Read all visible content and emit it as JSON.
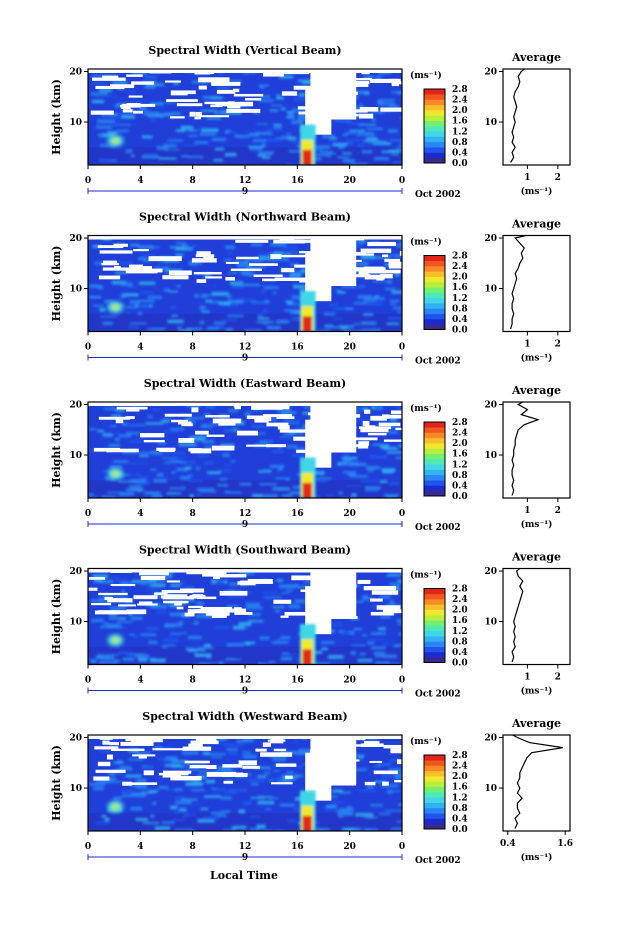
{
  "colors": {
    "colorbar": [
      "#3a2a8c",
      "#1b2bd0",
      "#1f55ee",
      "#2a86f4",
      "#31b2f2",
      "#41d6e6",
      "#4fe8b8",
      "#74f070",
      "#b9ef3c",
      "#efe92d",
      "#f9be2a",
      "#f98a26",
      "#f2571f",
      "#e2251b"
    ],
    "background_fill": "#1f3fd8",
    "line": "#000000"
  },
  "shared": {
    "xlabel": "Local Time",
    "date_label": "Oct 2002",
    "date_marker": "9",
    "height_label": "Height (km)",
    "unit_label": "(ms⁻¹)",
    "average_title": "Average",
    "average_xlabel": "(ms⁻¹)"
  },
  "chart_data": [
    {
      "type": "heatmap",
      "title": "Spectral Width (Vertical Beam)",
      "ylabel": "Height (km)",
      "xticks": [
        "0",
        "4",
        "8",
        "12",
        "16",
        "20",
        "0"
      ],
      "yticks": [
        "10",
        "20"
      ],
      "xlim": [
        0,
        24
      ],
      "ylim": [
        1.5,
        20.5
      ],
      "colorbar": {
        "label": "(ms⁻¹)",
        "ticks": [
          "2.8",
          "2.4",
          "2.0",
          "1.6",
          "1.2",
          "0.8",
          "0.4",
          "0.0"
        ],
        "range": [
          0,
          2.8
        ]
      },
      "average_profile": {
        "title": "Average",
        "xlabel": "(ms⁻¹)",
        "xticks": [
          "1",
          "2"
        ],
        "yticks": [
          "10",
          "20"
        ],
        "xlim": [
          0.2,
          2.4
        ],
        "x": [
          0.45,
          0.55,
          0.5,
          0.6,
          0.5,
          0.55,
          0.5,
          0.55,
          0.6,
          0.55,
          0.6,
          0.65,
          0.6,
          0.55,
          0.6,
          0.7,
          0.75,
          0.7,
          0.8,
          0.9
        ],
        "y": [
          2,
          3,
          4,
          5,
          6,
          7,
          8,
          9,
          10,
          11,
          12,
          13,
          14,
          15,
          16,
          17,
          18,
          19,
          20,
          20.5
        ]
      }
    },
    {
      "type": "heatmap",
      "title": "Spectral Width (Northward Beam)",
      "ylabel": "Height (km)",
      "xticks": [
        "0",
        "4",
        "8",
        "12",
        "16",
        "20",
        "0"
      ],
      "yticks": [
        "10",
        "20"
      ],
      "xlim": [
        0,
        24
      ],
      "ylim": [
        1.5,
        20.5
      ],
      "colorbar": {
        "label": "(ms⁻¹)",
        "ticks": [
          "2.8",
          "2.4",
          "2.0",
          "1.6",
          "1.2",
          "0.8",
          "0.4",
          "0.0"
        ],
        "range": [
          0,
          2.8
        ]
      },
      "average_profile": {
        "title": "Average",
        "xlabel": "(ms⁻¹)",
        "xticks": [
          "1",
          "2"
        ],
        "yticks": [
          "10",
          "20"
        ],
        "xlim": [
          0.2,
          2.4
        ],
        "x": [
          0.45,
          0.5,
          0.5,
          0.55,
          0.5,
          0.5,
          0.55,
          0.5,
          0.55,
          0.6,
          0.65,
          0.6,
          0.7,
          0.75,
          0.85,
          0.8,
          0.9,
          0.75,
          0.6,
          0.95
        ],
        "y": [
          2,
          3,
          4,
          5,
          6,
          7,
          8,
          9,
          10,
          11,
          12,
          13,
          14,
          15,
          16,
          17,
          18,
          19,
          20,
          20.5
        ]
      }
    },
    {
      "type": "heatmap",
      "title": "Spectral Width (Eastward Beam)",
      "ylabel": "Height (km)",
      "xticks": [
        "0",
        "4",
        "8",
        "12",
        "16",
        "20",
        "0"
      ],
      "yticks": [
        "10",
        "20"
      ],
      "xlim": [
        0,
        24
      ],
      "ylim": [
        1.5,
        20.5
      ],
      "colorbar": {
        "label": "(ms⁻¹)",
        "ticks": [
          "2.8",
          "2.4",
          "2.0",
          "1.6",
          "1.2",
          "0.8",
          "0.4",
          "0.0"
        ],
        "range": [
          0,
          2.8
        ]
      },
      "average_profile": {
        "title": "Average",
        "xlabel": "(ms⁻¹)",
        "xticks": [
          "1",
          "2"
        ],
        "yticks": [
          "10",
          "20"
        ],
        "xlim": [
          0.2,
          2.4
        ],
        "x": [
          0.5,
          0.55,
          0.5,
          0.55,
          0.5,
          0.5,
          0.55,
          0.5,
          0.55,
          0.55,
          0.6,
          0.6,
          0.65,
          0.7,
          0.9,
          1.35,
          0.8,
          1.0,
          0.7,
          0.85
        ],
        "y": [
          2,
          3,
          4,
          5,
          6,
          7,
          8,
          9,
          10,
          11,
          12,
          13,
          14,
          15,
          16,
          17,
          18,
          19,
          20,
          20.5
        ]
      }
    },
    {
      "type": "heatmap",
      "title": "Spectral Width (Southward Beam)",
      "ylabel": "Height (km)",
      "xticks": [
        "0",
        "4",
        "8",
        "12",
        "16",
        "20",
        "0"
      ],
      "yticks": [
        "10",
        "20"
      ],
      "xlim": [
        0,
        24
      ],
      "ylim": [
        1.5,
        20.5
      ],
      "colorbar": {
        "label": "(ms⁻¹)",
        "ticks": [
          "2.8",
          "2.4",
          "2.0",
          "1.6",
          "1.2",
          "0.8",
          "0.4",
          "0.0"
        ],
        "range": [
          0,
          2.8
        ]
      },
      "average_profile": {
        "title": "Average",
        "xlabel": "(ms⁻¹)",
        "xticks": [
          "1",
          "2"
        ],
        "yticks": [
          "10",
          "20"
        ],
        "xlim": [
          0.2,
          2.4
        ],
        "x": [
          0.5,
          0.55,
          0.5,
          0.6,
          0.55,
          0.6,
          0.55,
          0.6,
          0.55,
          0.6,
          0.65,
          0.7,
          0.75,
          0.8,
          0.85,
          0.75,
          0.85,
          0.7,
          0.65,
          0.75
        ],
        "y": [
          2,
          3,
          4,
          5,
          6,
          7,
          8,
          9,
          10,
          11,
          12,
          13,
          14,
          15,
          16,
          17,
          18,
          19,
          20,
          20.5
        ]
      }
    },
    {
      "type": "heatmap",
      "title": "Spectral Width (Westward Beam)",
      "ylabel": "Height (km)",
      "xticks": [
        "0",
        "4",
        "8",
        "12",
        "16",
        "20",
        "0"
      ],
      "yticks": [
        "10",
        "20"
      ],
      "xlim": [
        0,
        24
      ],
      "ylim": [
        1.5,
        20.5
      ],
      "colorbar": {
        "label": "(ms⁻¹)",
        "ticks": [
          "2.8",
          "2.4",
          "2.0",
          "1.6",
          "1.2",
          "0.8",
          "0.4",
          "0.0"
        ],
        "range": [
          0,
          2.8
        ]
      },
      "average_profile": {
        "title": "Average",
        "xlabel": "(ms⁻¹)",
        "xticks": [
          "0.4",
          "1.6"
        ],
        "yticks": [
          "10",
          "20"
        ],
        "xlim": [
          0.3,
          1.7
        ],
        "x": [
          0.55,
          0.6,
          0.55,
          0.65,
          0.6,
          0.6,
          0.7,
          0.6,
          0.65,
          0.6,
          0.65,
          0.65,
          0.7,
          0.75,
          0.8,
          0.9,
          1.55,
          0.85,
          0.6,
          0.5
        ],
        "y": [
          2,
          3,
          4,
          5,
          6,
          7,
          8,
          9,
          10,
          11,
          12,
          13,
          14,
          15,
          16,
          17,
          18,
          19,
          20,
          20.5
        ]
      }
    }
  ]
}
